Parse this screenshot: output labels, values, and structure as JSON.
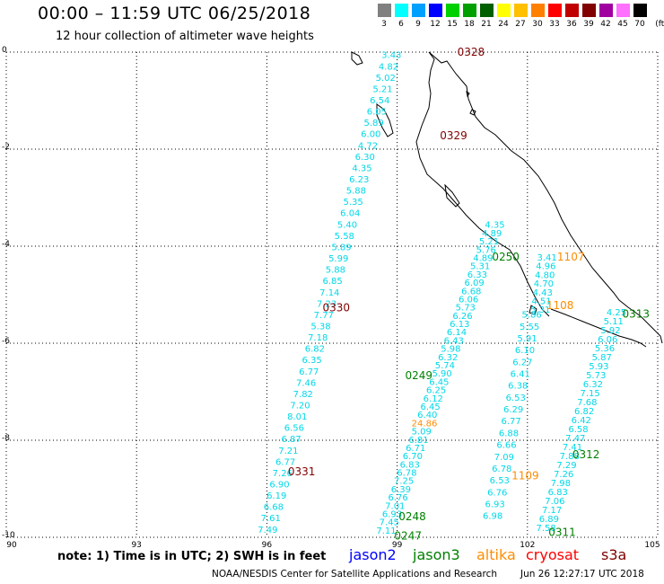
{
  "header": {
    "title": "00:00 – 11:59 UTC 06/25/2018",
    "subtitle": "12 hour collection of altimeter wave heights"
  },
  "legend": {
    "unit": "(ft)",
    "bins": [
      {
        "label": "3",
        "color": "#808080"
      },
      {
        "label": "6",
        "color": "#00ffff"
      },
      {
        "label": "9",
        "color": "#00a0ff"
      },
      {
        "label": "12",
        "color": "#0000ff"
      },
      {
        "label": "15",
        "color": "#00d000"
      },
      {
        "label": "18",
        "color": "#00a000"
      },
      {
        "label": "21",
        "color": "#006000"
      },
      {
        "label": "24",
        "color": "#ffff00"
      },
      {
        "label": "27",
        "color": "#ffc000"
      },
      {
        "label": "30",
        "color": "#ff8000"
      },
      {
        "label": "33",
        "color": "#ff0000"
      },
      {
        "label": "36",
        "color": "#c00000"
      },
      {
        "label": "39",
        "color": "#800000"
      },
      {
        "label": "42",
        "color": "#a000a0"
      },
      {
        "label": "45",
        "color": "#ff70ff"
      },
      {
        "label": "70",
        "color": "#000000"
      }
    ]
  },
  "axes": {
    "x_ticks": [
      "90",
      "93",
      "96",
      "99",
      "102",
      "105"
    ],
    "y_ticks": [
      "0",
      "-2",
      "-4",
      "-6",
      "-8",
      "-10"
    ]
  },
  "colors": {
    "wave": "#00d8e8",
    "jason2": "#0000ff",
    "jason3": "#008000",
    "altika": "#ff8c00",
    "cryosat": "#ff0000",
    "s3a": "#800000",
    "coast": "#000000",
    "grid": "#000000"
  },
  "track_labels": [
    {
      "text": "0328",
      "sat": "s3a",
      "lon": 100.7,
      "lat": 0.0
    },
    {
      "text": "0329",
      "sat": "s3a",
      "lon": 100.3,
      "lat": -1.72
    },
    {
      "text": "0330",
      "sat": "s3a",
      "lon": 97.6,
      "lat": -5.27
    },
    {
      "text": "0331",
      "sat": "s3a",
      "lon": 96.8,
      "lat": -8.65
    },
    {
      "text": "0250",
      "sat": "jason3",
      "lon": 101.5,
      "lat": -4.22
    },
    {
      "text": "0249",
      "sat": "jason3",
      "lon": 99.5,
      "lat": -6.67
    },
    {
      "text": "0248",
      "sat": "jason3",
      "lon": 99.35,
      "lat": -9.57
    },
    {
      "text": "0247",
      "sat": "jason3",
      "lon": 99.25,
      "lat": -9.97
    },
    {
      "text": "0313",
      "sat": "jason3",
      "lon": 104.5,
      "lat": -5.4
    },
    {
      "text": "0312",
      "sat": "jason3",
      "lon": 103.35,
      "lat": -8.3
    },
    {
      "text": "0311",
      "sat": "jason3",
      "lon": 102.8,
      "lat": -9.9
    },
    {
      "text": "1107",
      "sat": "altika",
      "lon": 103.0,
      "lat": -4.22
    },
    {
      "text": "1108",
      "sat": "altika",
      "lon": 102.75,
      "lat": -5.22
    },
    {
      "text": "1109",
      "sat": "altika",
      "lon": 101.95,
      "lat": -8.73
    }
  ],
  "tracks": [
    {
      "name": "s3a-west",
      "lon_start": 98.87,
      "lat_start": -0.05,
      "lon_end": 96.02,
      "lat_end": -9.83,
      "values": [
        "3.43",
        "4.82",
        "5.02",
        "5.21",
        "6.54",
        "6.05",
        "5.89",
        "6.00",
        "4.72",
        "6.30",
        "4.35",
        "6.23",
        "5.88",
        "5.35",
        "6.04",
        "5.40",
        "5.58",
        "5.89",
        "5.99",
        "5.88",
        "6.85",
        "7.14",
        "7.23",
        "7.77",
        "5.38",
        "7.18",
        "6.82",
        "6.35",
        "6.77",
        "7.46",
        "7.82",
        "7.20",
        "8.01",
        "6.56",
        "6.87",
        "7.21",
        "6.77",
        "7.26",
        "6.90",
        "6.19",
        "6.68",
        "7.61",
        "7.49"
      ]
    },
    {
      "name": "jason3-mid-west",
      "lon_start": 101.25,
      "lat_start": -3.55,
      "lon_end": 98.75,
      "lat_end": -9.85,
      "values": [
        "4.35",
        "4.89",
        "5.21",
        "5.76",
        "4.89",
        "5.31",
        "6.33",
        "6.09",
        "6.68",
        "6.06",
        "5.73",
        "6.26",
        "6.13",
        "6.14",
        "6.43",
        "5.98",
        "6.32",
        "5.74",
        "5.90",
        "6.45",
        "6.25",
        "6.12",
        "6.45",
        "6.40",
        "24.86",
        "5.09",
        "6.81",
        "6.71",
        "6.70",
        "6.83",
        "6.78",
        "7.25",
        "6.39",
        "6.76",
        "7.01",
        "6.93",
        "7.45",
        "7.11"
      ]
    },
    {
      "name": "jason3-mid-east",
      "lon_start": 102.1,
      "lat_start": -5.4,
      "lon_end": 101.2,
      "lat_end": -9.55,
      "values": [
        "5.86",
        "5.55",
        "5.91",
        "6.10",
        "6.27",
        "6.41",
        "6.38",
        "6.53",
        "6.29",
        "6.77",
        "6.88",
        "6.66",
        "7.09",
        "6.78",
        "6.53",
        "6.76",
        "6.93",
        "6.98"
      ]
    },
    {
      "name": "altika-1107",
      "lon_start": 102.45,
      "lat_start": -4.22,
      "lon_end": 102.3,
      "lat_end": -5.3,
      "values": [
        "3.41",
        "4.96",
        "4.80",
        "4.70",
        "4.43",
        "4.51",
        "5.31"
      ]
    },
    {
      "name": "jason3-east",
      "lon_start": 104.05,
      "lat_start": -5.35,
      "lon_end": 102.43,
      "lat_end": -9.8,
      "values": [
        "4.25",
        "5.11",
        "5.92",
        "6.06",
        "5.36",
        "5.87",
        "5.93",
        "5.73",
        "6.32",
        "7.15",
        "7.68",
        "6.82",
        "6.42",
        "6.58",
        "7.47",
        "7.41",
        "7.88",
        "7.29",
        "7.26",
        "7.98",
        "6.83",
        "7.06",
        "7.17",
        "6.89",
        "7.58"
      ]
    }
  ],
  "footer": {
    "note": "note: 1) Time is in UTC; 2) SWH is in feet",
    "satellites": [
      {
        "label": "jason2",
        "key": "jason2"
      },
      {
        "label": "jason3",
        "key": "jason3"
      },
      {
        "label": "altika",
        "key": "altika"
      },
      {
        "label": "cryosat",
        "key": "cryosat"
      },
      {
        "label": "s3a",
        "key": "s3a"
      }
    ],
    "credit": "NOAA/NESDIS Center for Satellite Applications and Research",
    "timestamp": "Jun 26 12:27:17 UTC 2018"
  }
}
